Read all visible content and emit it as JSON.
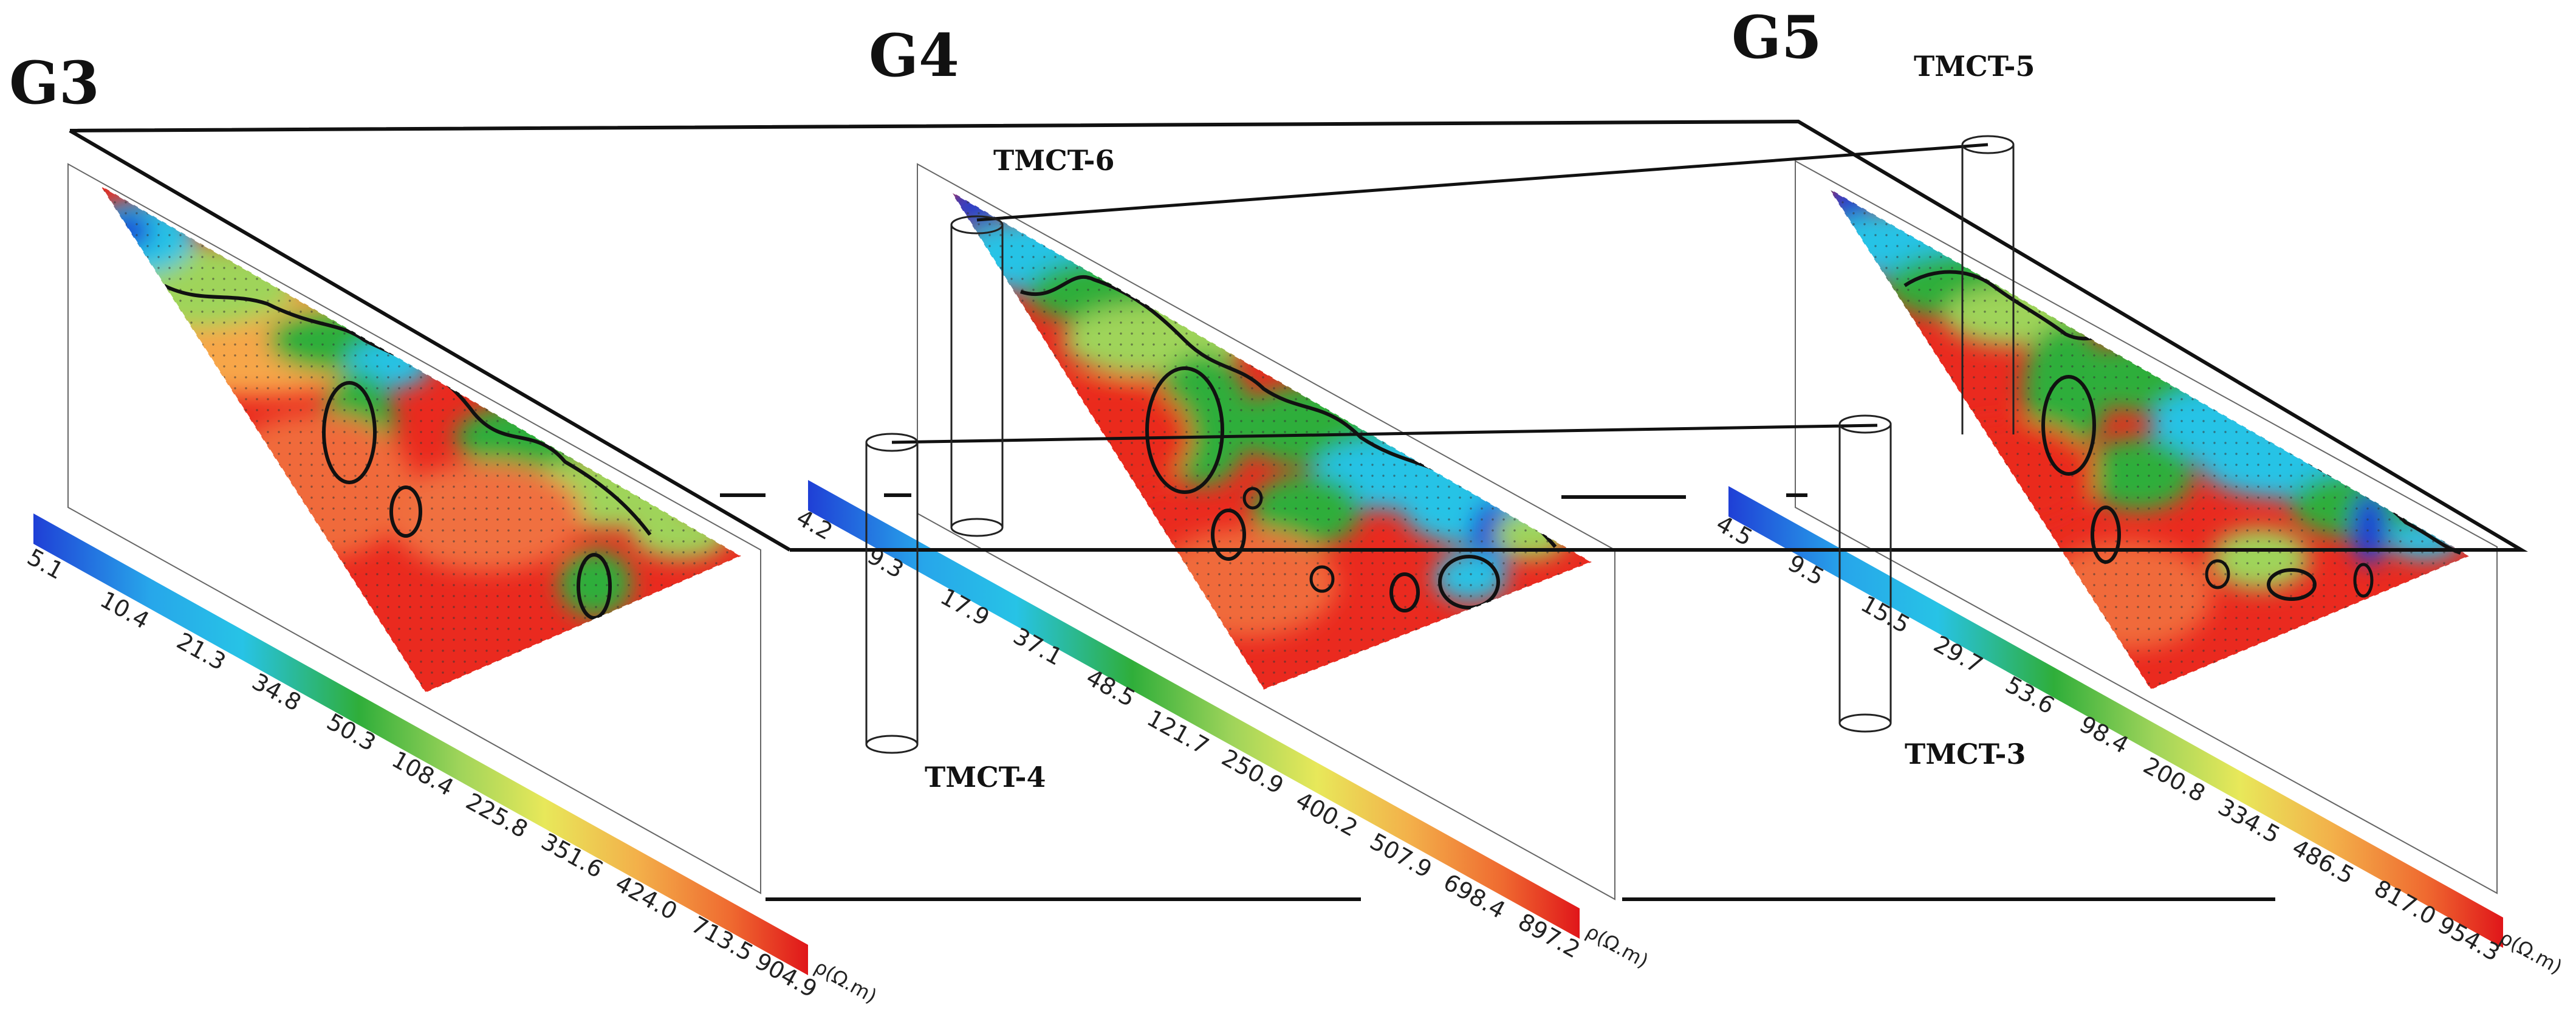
{
  "headers": {
    "g3": "G3",
    "g4": "G4",
    "g5": "G5"
  },
  "wells": {
    "tmct5": "TMCT-5",
    "tmct6": "TMCT-6",
    "tmct4": "TMCT-4",
    "tmct3": "TMCT-3"
  },
  "colors": {
    "blue": "#1f3fd6",
    "cyan": "#27c3e6",
    "green": "#2fae3a",
    "light_green": "#9fd45a",
    "yellow": "#e8e85a",
    "orange": "#f39a3a",
    "red": "#ea2a1f",
    "dark_red": "#e0161a"
  },
  "scales": [
    {
      "id": "g3",
      "labels": [
        "5.1",
        "10.4",
        "21.3",
        "34.8",
        "50.3",
        "108.4",
        "225.8",
        "351.6",
        "424.0",
        "713.5",
        "904.9"
      ],
      "unit": "ρ(Ω.m)"
    },
    {
      "id": "g4",
      "labels": [
        "4.2",
        "9.3",
        "17.9",
        "37.1",
        "48.5",
        "121.7",
        "250.9",
        "400.2",
        "507.9",
        "698.4",
        "897.2"
      ],
      "unit": "ρ(Ω.m)"
    },
    {
      "id": "g5",
      "labels": [
        "4.5",
        "9.5",
        "15.5",
        "29.7",
        "53.6",
        "98.4",
        "200.8",
        "334.5",
        "486.5",
        "817.0",
        "954.3"
      ],
      "unit": "ρ(Ω.m)"
    }
  ]
}
